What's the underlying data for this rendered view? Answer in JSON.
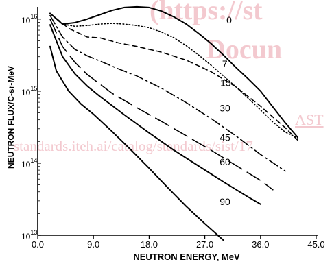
{
  "watermark": {
    "lines": [
      "(https://st",
      "Docun",
      "AST",
      "standards.iteh.ai/catalog/standards/sist/17"
    ],
    "color": "#f3c9cf"
  },
  "chart_data": {
    "type": "line",
    "title": "",
    "xlabel": "NEUTRON ENERGY, MeV",
    "ylabel": "NEUTRON FLUX/C-sr-MeV",
    "xlim": [
      0,
      45
    ],
    "ylim_log10": [
      13,
      16.15
    ],
    "x_scale": "linear",
    "y_scale": "log",
    "x_ticks": [
      0,
      9,
      18,
      27,
      36,
      45
    ],
    "x_tick_labels": [
      "0.0",
      "9.0",
      "18.0",
      "27.0",
      "36.0",
      "45.0"
    ],
    "y_ticks": [
      {
        "base": "10",
        "exp": "13",
        "value_log10": 13
      },
      {
        "base": "10",
        "exp": "14",
        "value_log10": 14
      },
      {
        "base": "10",
        "exp": "15",
        "value_log10": 15
      },
      {
        "base": "10",
        "exp": "16",
        "value_log10": 16
      }
    ],
    "grid": false,
    "series": [
      {
        "name": "0",
        "dash": "solid",
        "width": 2,
        "x": [
          2,
          4,
          6,
          8,
          10,
          12,
          14,
          16,
          18,
          20,
          22,
          24,
          26,
          28,
          30,
          32,
          34,
          36,
          38,
          40,
          42
        ],
        "y_log10": [
          16.08,
          15.93,
          15.95,
          16.0,
          16.06,
          16.12,
          16.16,
          16.17,
          16.16,
          16.11,
          16.03,
          15.93,
          15.8,
          15.66,
          15.5,
          15.33,
          15.17,
          15.0,
          14.78,
          14.56,
          14.36
        ]
      },
      {
        "name": "7",
        "dash": "dotted",
        "width": 1.6,
        "x": [
          2,
          4,
          6,
          8,
          10,
          12,
          14,
          16,
          18,
          20,
          22,
          24,
          26,
          28,
          30,
          32,
          34,
          36,
          38,
          40,
          42
        ],
        "y_log10": [
          16.08,
          15.93,
          15.9,
          15.91,
          15.93,
          15.94,
          15.93,
          15.91,
          15.88,
          15.82,
          15.74,
          15.63,
          15.5,
          15.36,
          15.21,
          15.06,
          14.9,
          14.74,
          14.57,
          14.43,
          14.35
        ]
      },
      {
        "name": "15",
        "dash": "dashed",
        "width": 1.6,
        "x": [
          2,
          5,
          8,
          10,
          13,
          16,
          20,
          24,
          28,
          32,
          36,
          40,
          42
        ],
        "y_log10": [
          16.08,
          15.87,
          15.75,
          15.74,
          15.67,
          15.62,
          15.54,
          15.43,
          15.27,
          15.06,
          14.79,
          14.49,
          14.32
        ]
      },
      {
        "name": "30",
        "dash": "dash-dot",
        "width": 1.6,
        "x": [
          2,
          4,
          6,
          8,
          10,
          13,
          16,
          20,
          24,
          28,
          32,
          36,
          40
        ],
        "y_log10": [
          16.05,
          15.75,
          15.58,
          15.49,
          15.42,
          15.31,
          15.21,
          15.04,
          14.84,
          14.62,
          14.38,
          14.12,
          13.89
        ]
      },
      {
        "name": "45",
        "dash": "long-dash",
        "width": 1.6,
        "x": [
          2,
          4,
          6,
          8,
          12,
          16,
          20,
          24,
          28,
          32,
          36,
          38
        ],
        "y_log10": [
          16.0,
          15.62,
          15.4,
          15.23,
          14.97,
          14.77,
          14.58,
          14.38,
          14.18,
          13.97,
          13.76,
          13.63
        ]
      },
      {
        "name": "60",
        "dash": "solid",
        "width": 2,
        "x": [
          2,
          4,
          6,
          8,
          10,
          14,
          18,
          22,
          26,
          30,
          34,
          36
        ],
        "y_log10": [
          15.92,
          15.48,
          15.24,
          15.07,
          14.93,
          14.67,
          14.42,
          14.18,
          13.96,
          13.74,
          13.53,
          13.43
        ]
      },
      {
        "name": "90",
        "dash": "solid",
        "width": 2,
        "x": [
          2,
          3,
          5,
          7,
          9,
          12,
          15,
          18,
          21,
          24,
          27,
          30
        ],
        "y_log10": [
          15.62,
          15.28,
          15.0,
          14.82,
          14.68,
          14.44,
          14.19,
          13.93,
          13.66,
          13.4,
          13.16,
          12.93
        ]
      }
    ],
    "curve_labels": [
      {
        "text": "0",
        "x": 30.5,
        "y_log10": 15.94
      },
      {
        "text": "7",
        "x": 29.8,
        "y_log10": 15.33
      },
      {
        "text": "15",
        "x": 29.5,
        "y_log10": 15.07
      },
      {
        "text": "30",
        "x": 29.4,
        "y_log10": 14.72
      },
      {
        "text": "45",
        "x": 29.4,
        "y_log10": 14.31
      },
      {
        "text": "60",
        "x": 29.4,
        "y_log10": 13.97
      },
      {
        "text": "90",
        "x": 29.4,
        "y_log10": 13.42
      }
    ]
  }
}
